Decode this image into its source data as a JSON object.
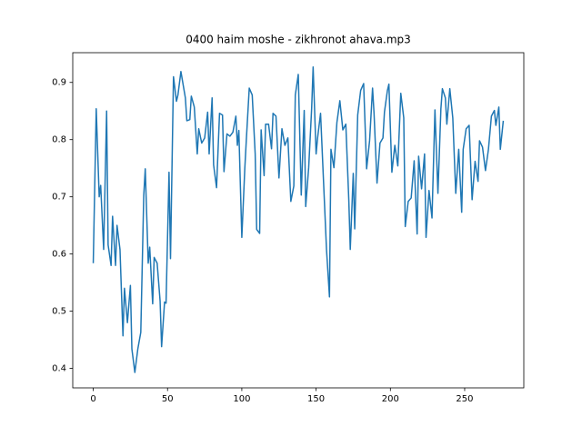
{
  "chart_data": {
    "type": "line",
    "title": "0400 haim moshe - zikhronot ahava.mp3",
    "color": "#1f77b4",
    "x": [
      0,
      2,
      4,
      5,
      7,
      9,
      10,
      12,
      13,
      15,
      16,
      18,
      20,
      21,
      23,
      25,
      26,
      28,
      30,
      32,
      34,
      35,
      37,
      38,
      40,
      41,
      43,
      45,
      46,
      48,
      49,
      51,
      52,
      54,
      56,
      57,
      59,
      62,
      63,
      65,
      66,
      68,
      70,
      71,
      73,
      75,
      77,
      78,
      80,
      81,
      83,
      85,
      87,
      88,
      90,
      92,
      94,
      96,
      97,
      98,
      100,
      102,
      103,
      105,
      107,
      109,
      110,
      112,
      113,
      115,
      116,
      118,
      120,
      121,
      123,
      125,
      127,
      129,
      131,
      133,
      135,
      136,
      138,
      140,
      142,
      143,
      145,
      147,
      148,
      150,
      151,
      153,
      155,
      157,
      159,
      160,
      162,
      164,
      166,
      168,
      170,
      172,
      173,
      175,
      176,
      178,
      180,
      182,
      184,
      186,
      188,
      189,
      191,
      193,
      195,
      196,
      198,
      199,
      201,
      203,
      205,
      207,
      209,
      210,
      212,
      214,
      216,
      218,
      219,
      221,
      223,
      224,
      226,
      228,
      230,
      232,
      234,
      235,
      237,
      238,
      240,
      242,
      244,
      246,
      248,
      249,
      251,
      253,
      255,
      257,
      259,
      260,
      262,
      264,
      266,
      268,
      270,
      271,
      273,
      274,
      276
    ],
    "values": [
      0.584,
      0.854,
      0.7,
      0.72,
      0.608,
      0.85,
      0.616,
      0.58,
      0.666,
      0.58,
      0.65,
      0.608,
      0.457,
      0.54,
      0.48,
      0.545,
      0.434,
      0.393,
      0.434,
      0.463,
      0.703,
      0.749,
      0.584,
      0.612,
      0.513,
      0.594,
      0.584,
      0.518,
      0.438,
      0.516,
      0.514,
      0.743,
      0.592,
      0.91,
      0.867,
      0.878,
      0.919,
      0.873,
      0.833,
      0.835,
      0.876,
      0.857,
      0.775,
      0.819,
      0.794,
      0.803,
      0.848,
      0.775,
      0.873,
      0.756,
      0.716,
      0.846,
      0.843,
      0.744,
      0.81,
      0.806,
      0.813,
      0.841,
      0.79,
      0.816,
      0.629,
      0.749,
      0.798,
      0.89,
      0.878,
      0.775,
      0.643,
      0.636,
      0.817,
      0.737,
      0.827,
      0.827,
      0.784,
      0.846,
      0.841,
      0.733,
      0.819,
      0.79,
      0.803,
      0.692,
      0.719,
      0.878,
      0.914,
      0.703,
      0.851,
      0.683,
      0.751,
      0.854,
      0.927,
      0.775,
      0.803,
      0.846,
      0.727,
      0.608,
      0.525,
      0.783,
      0.751,
      0.83,
      0.868,
      0.817,
      0.827,
      0.695,
      0.608,
      0.741,
      0.644,
      0.843,
      0.886,
      0.898,
      0.749,
      0.798,
      0.89,
      0.846,
      0.724,
      0.794,
      0.803,
      0.848,
      0.886,
      0.897,
      0.743,
      0.79,
      0.754,
      0.881,
      0.838,
      0.648,
      0.692,
      0.698,
      0.763,
      0.635,
      0.771,
      0.714,
      0.775,
      0.629,
      0.711,
      0.663,
      0.852,
      0.706,
      0.854,
      0.889,
      0.873,
      0.827,
      0.889,
      0.838,
      0.706,
      0.783,
      0.673,
      0.783,
      0.819,
      0.825,
      0.695,
      0.762,
      0.727,
      0.798,
      0.787,
      0.746,
      0.783,
      0.841,
      0.851,
      0.825,
      0.857,
      0.783,
      0.833
    ],
    "xlim": [
      -13.8,
      289.8
    ],
    "ylim": [
      0.366,
      0.952
    ],
    "xticks": [
      0,
      50,
      100,
      150,
      200,
      250
    ],
    "yticks": [
      0.4,
      0.5,
      0.6,
      0.7,
      0.8,
      0.9
    ]
  }
}
